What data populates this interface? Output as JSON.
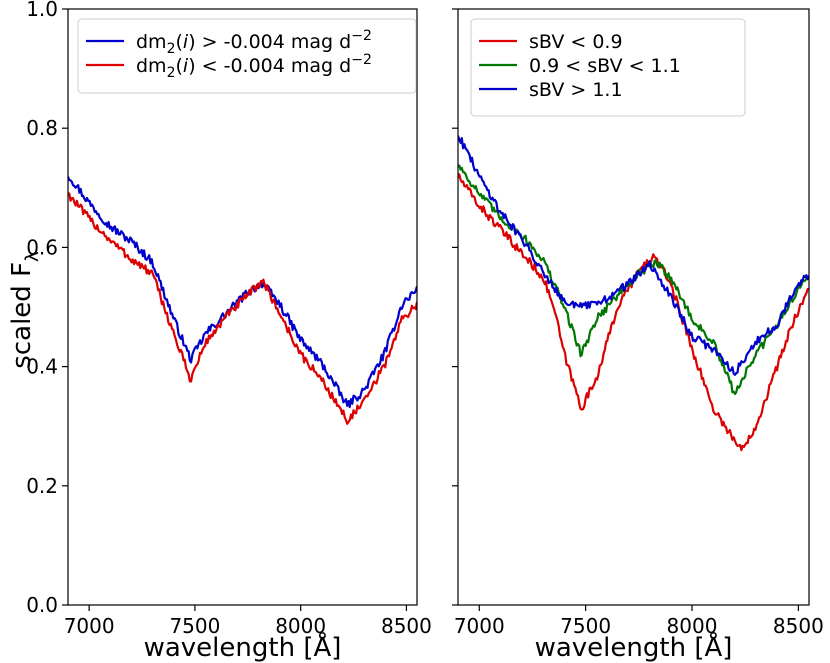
{
  "figure": {
    "ylabel_main": "scaled F",
    "ylabel_sub": "λ"
  },
  "chart_data": [
    {
      "type": "line",
      "title": "",
      "xlabel": "wavelength [Å]",
      "ylabel": "scaled Fλ",
      "xlim": [
        6900,
        8550
      ],
      "ylim": [
        0.0,
        1.0
      ],
      "xticks": [
        7000,
        7500,
        8000,
        8500
      ],
      "yticks": [
        0.0,
        0.2,
        0.4,
        0.6,
        0.8,
        1.0
      ],
      "ytick_labels": [
        "0.0",
        "0.2",
        "0.4",
        "0.6",
        "0.8",
        "1.0"
      ],
      "grid": false,
      "legend_position": "top-right",
      "series": [
        {
          "name": "dm2(i) > -0.004 mag d-2",
          "legend": {
            "pre": "dm",
            "sub": "2",
            "open": "(",
            "ital": "i",
            "mid": ") > -0.004 mag d",
            "sup": "−2"
          },
          "color": "#0000cc",
          "x": [
            6900,
            7000,
            7100,
            7200,
            7300,
            7400,
            7480,
            7550,
            7650,
            7750,
            7820,
            7900,
            8000,
            8100,
            8220,
            8300,
            8400,
            8480,
            8550
          ],
          "y": [
            0.722,
            0.675,
            0.635,
            0.61,
            0.575,
            0.48,
            0.412,
            0.455,
            0.49,
            0.525,
            0.54,
            0.505,
            0.445,
            0.405,
            0.335,
            0.36,
            0.425,
            0.505,
            0.53
          ]
        },
        {
          "name": "dm2(i) < -0.004 mag d-2",
          "legend": {
            "pre": "dm",
            "sub": "2",
            "open": "(",
            "ital": "i",
            "mid": ") < -0.004 mag d",
            "sup": "−2"
          },
          "color": "#dd0000",
          "x": [
            6900,
            7000,
            7100,
            7200,
            7300,
            7400,
            7480,
            7550,
            7650,
            7750,
            7820,
            7900,
            8000,
            8100,
            8220,
            8300,
            8400,
            8480,
            8550
          ],
          "y": [
            0.69,
            0.648,
            0.612,
            0.58,
            0.555,
            0.455,
            0.378,
            0.44,
            0.485,
            0.52,
            0.545,
            0.49,
            0.42,
            0.378,
            0.31,
            0.34,
            0.405,
            0.48,
            0.505
          ]
        }
      ]
    },
    {
      "type": "line",
      "title": "",
      "xlabel": "wavelength [Å]",
      "ylabel": "",
      "xlim": [
        6900,
        8550
      ],
      "ylim": [
        0.0,
        1.0
      ],
      "xticks": [
        7000,
        7500,
        8000,
        8500
      ],
      "yticks": [
        0.0,
        0.2,
        0.4,
        0.6,
        0.8,
        1.0
      ],
      "grid": false,
      "legend_position": "top-right",
      "series": [
        {
          "name": "sBV < 0.9",
          "color": "#dd0000",
          "x": [
            6900,
            7000,
            7100,
            7200,
            7300,
            7350,
            7400,
            7480,
            7550,
            7650,
            7750,
            7820,
            7900,
            8000,
            8100,
            8230,
            8300,
            8400,
            8480,
            8550
          ],
          "y": [
            0.72,
            0.67,
            0.63,
            0.59,
            0.55,
            0.5,
            0.42,
            0.33,
            0.38,
            0.5,
            0.56,
            0.585,
            0.54,
            0.43,
            0.33,
            0.26,
            0.3,
            0.4,
            0.48,
            0.53
          ]
        },
        {
          "name": "0.9 < sBV < 1.1",
          "color": "#007700",
          "x": [
            6900,
            7000,
            7100,
            7200,
            7300,
            7400,
            7480,
            7550,
            7650,
            7750,
            7830,
            7900,
            8000,
            8100,
            8200,
            8300,
            8400,
            8480,
            8550
          ],
          "y": [
            0.74,
            0.69,
            0.65,
            0.62,
            0.58,
            0.5,
            0.42,
            0.48,
            0.52,
            0.555,
            0.575,
            0.55,
            0.48,
            0.44,
            0.355,
            0.42,
            0.47,
            0.52,
            0.55
          ]
        },
        {
          "name": "sBV > 1.1",
          "color": "#0000cc",
          "x": [
            6900,
            7000,
            7100,
            7200,
            7300,
            7400,
            7480,
            7550,
            7650,
            7750,
            7800,
            7900,
            8000,
            8100,
            8200,
            8300,
            8400,
            8480,
            8550
          ],
          "y": [
            0.79,
            0.72,
            0.66,
            0.615,
            0.56,
            0.51,
            0.5,
            0.505,
            0.525,
            0.555,
            0.57,
            0.52,
            0.45,
            0.43,
            0.39,
            0.44,
            0.47,
            0.53,
            0.555
          ]
        }
      ]
    }
  ]
}
